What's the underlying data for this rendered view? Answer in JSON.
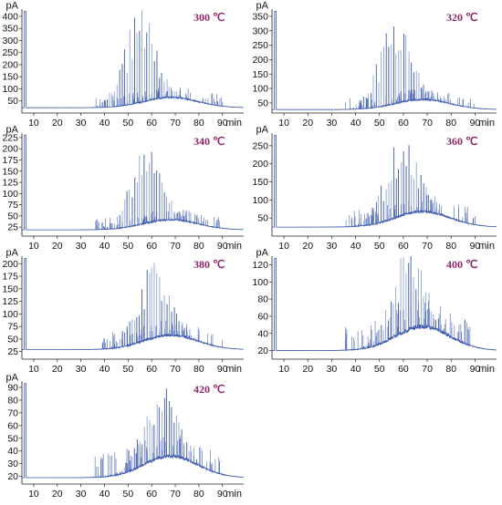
{
  "figure": {
    "panels": [
      {
        "label": "300 ℃",
        "ylabel": "pA",
        "xlabel": "min",
        "yticks": [
          50,
          100,
          150,
          200,
          250,
          300,
          350,
          400
        ],
        "ylim": [
          0,
          430
        ],
        "baseline": 22,
        "hump": 65,
        "peakScale": 1.0,
        "seed": 11
      },
      {
        "label": "320 ℃",
        "ylabel": "pA",
        "xlabel": "min",
        "yticks": [
          50,
          100,
          150,
          200,
          250,
          300,
          350
        ],
        "ylim": [
          15,
          375
        ],
        "baseline": 27,
        "hump": 62,
        "peakScale": 0.95,
        "seed": 23
      },
      {
        "label": "340 ℃",
        "ylabel": "pA",
        "xlabel": "min",
        "yticks": [
          25,
          50,
          75,
          100,
          125,
          150,
          175,
          200,
          225
        ],
        "ylim": [
          5,
          235
        ],
        "baseline": 19,
        "hump": 42,
        "peakScale": 0.85,
        "seed": 37
      },
      {
        "label": "360 ℃",
        "ylabel": "pA",
        "xlabel": "min",
        "yticks": [
          50,
          100,
          150,
          200,
          250
        ],
        "ylim": [
          0,
          285
        ],
        "baseline": 25,
        "hump": 68,
        "peakScale": 0.88,
        "seed": 41
      },
      {
        "label": "380 ℃",
        "ylabel": "pA",
        "xlabel": "min",
        "yticks": [
          25,
          50,
          75,
          100,
          125,
          150,
          175,
          200
        ],
        "ylim": [
          10,
          215
        ],
        "baseline": 29,
        "hump": 58,
        "peakScale": 0.85,
        "seed": 53
      },
      {
        "label": "400 ℃",
        "ylabel": "pA",
        "xlabel": "min",
        "yticks": [
          20,
          40,
          60,
          80,
          100,
          120
        ],
        "ylim": [
          10,
          130
        ],
        "baseline": 20,
        "hump": 48,
        "peakScale": 0.9,
        "seed": 67
      },
      {
        "label": "420 ℃",
        "ylabel": "pA",
        "xlabel": "min",
        "yticks": [
          20,
          30,
          40,
          50,
          60,
          70,
          80,
          90
        ],
        "ylim": [
          14,
          95
        ],
        "baseline": 19,
        "hump": 36,
        "peakScale": 0.85,
        "seed": 79
      }
    ],
    "xticks": [
      10,
      20,
      30,
      40,
      50,
      60,
      70,
      80,
      90
    ],
    "xlim": [
      5,
      99
    ]
  },
  "chart_data": [
    {
      "type": "line",
      "title": "300 ℃",
      "xlabel": "min",
      "ylabel": "pA",
      "xlim": [
        5,
        99
      ],
      "ylim": [
        0,
        430
      ],
      "x_peak_max": 53,
      "y_peak_max": 385,
      "background_hump_max": 65,
      "baseline_start": 22
    },
    {
      "type": "line",
      "title": "320 ℃",
      "xlabel": "min",
      "ylabel": "pA",
      "xlim": [
        5,
        99
      ],
      "ylim": [
        15,
        375
      ],
      "x_peak_max": 53,
      "y_peak_max": 350,
      "background_hump_max": 62,
      "baseline_start": 27
    },
    {
      "type": "line",
      "title": "340 ℃",
      "xlabel": "min",
      "ylabel": "pA",
      "xlim": [
        5,
        99
      ],
      "ylim": [
        5,
        235
      ],
      "x_peak_max": 57,
      "y_peak_max": 215,
      "background_hump_max": 42,
      "baseline_start": 19
    },
    {
      "type": "line",
      "title": "360 ℃",
      "xlabel": "min",
      "ylabel": "pA",
      "xlim": [
        5,
        99
      ],
      "ylim": [
        0,
        285
      ],
      "x_peak_max": 58,
      "y_peak_max": 265,
      "background_hump_max": 68,
      "baseline_start": 25
    },
    {
      "type": "line",
      "title": "380 ℃",
      "xlabel": "min",
      "ylabel": "pA",
      "xlim": [
        5,
        99
      ],
      "ylim": [
        10,
        215
      ],
      "x_peak_max": 61,
      "y_peak_max": 200,
      "background_hump_max": 58,
      "baseline_start": 29
    },
    {
      "type": "line",
      "title": "400 ℃",
      "xlabel": "min",
      "ylabel": "pA",
      "xlim": [
        5,
        99
      ],
      "ylim": [
        10,
        130
      ],
      "x_peak_max": 64,
      "y_peak_max": 122,
      "background_hump_max": 48,
      "baseline_start": 20
    },
    {
      "type": "line",
      "title": "420 ℃",
      "xlabel": "min",
      "ylabel": "pA",
      "xlim": [
        5,
        99
      ],
      "ylim": [
        14,
        95
      ],
      "x_peak_max": 63,
      "y_peak_max": 89,
      "background_hump_max": 36,
      "baseline_start": 19
    }
  ]
}
